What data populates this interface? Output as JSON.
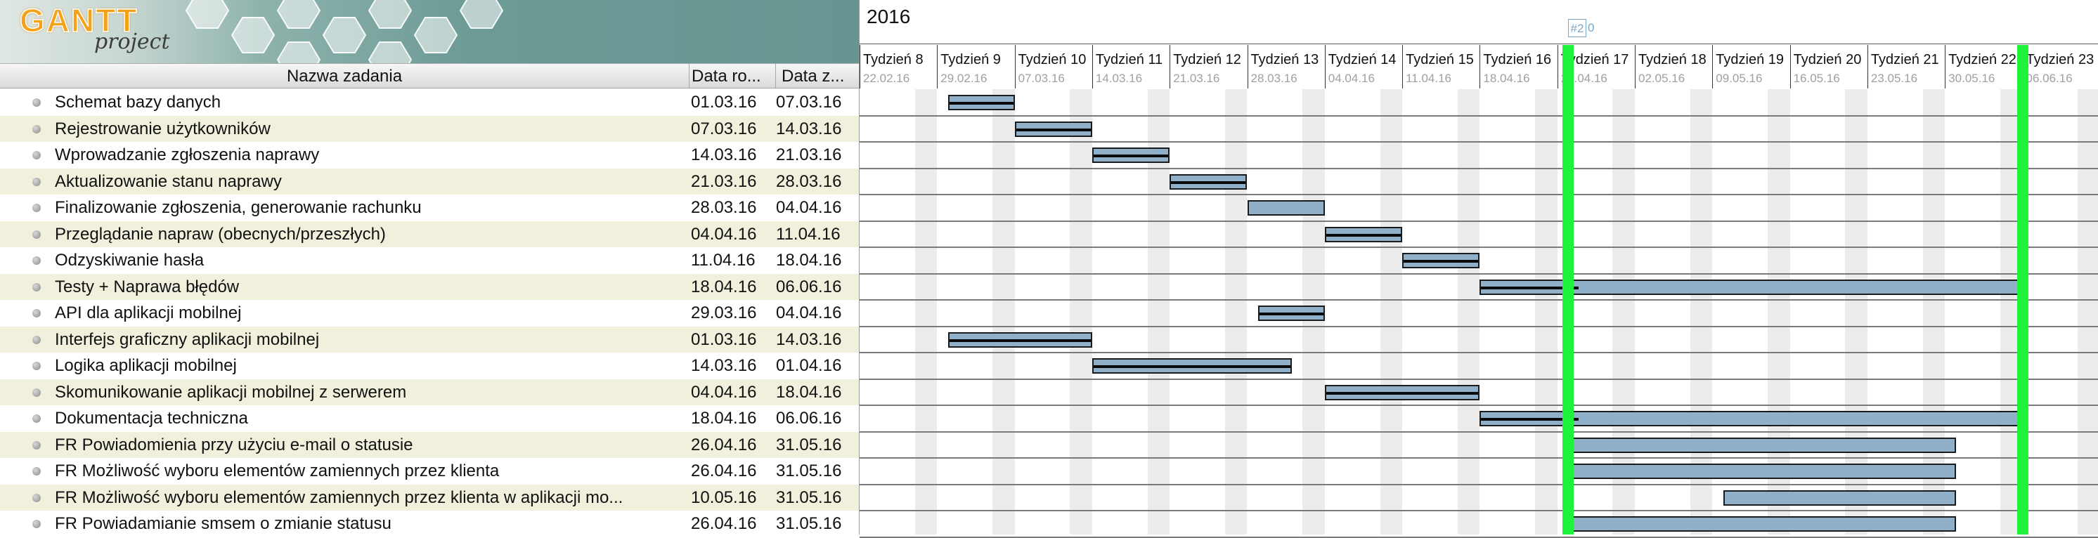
{
  "logo": {
    "word": "GANTT",
    "sub": "project"
  },
  "table": {
    "headers": {
      "name": "Nazwa zadania",
      "start": "Data ro...",
      "end": "Data z..."
    },
    "tasks": [
      {
        "name": "Schemat bazy danych",
        "start": "01.03.16",
        "end": "07.03.16",
        "progress": 1.0
      },
      {
        "name": "Rejestrowanie użytkowników",
        "start": "07.03.16",
        "end": "14.03.16",
        "progress": 1.0
      },
      {
        "name": "Wprowadzanie zgłoszenia naprawy",
        "start": "14.03.16",
        "end": "21.03.16",
        "progress": 1.0
      },
      {
        "name": "Aktualizowanie stanu naprawy",
        "start": "21.03.16",
        "end": "28.03.16",
        "progress": 1.0
      },
      {
        "name": "Finalizowanie zgłoszenia, generowanie rachunku",
        "start": "28.03.16",
        "end": "04.04.16",
        "progress": 0.0
      },
      {
        "name": "Przeglądanie napraw (obecnych/przeszłych)",
        "start": "04.04.16",
        "end": "11.04.16",
        "progress": 1.0
      },
      {
        "name": "Odzyskiwanie hasła",
        "start": "11.04.16",
        "end": "18.04.16",
        "progress": 1.0
      },
      {
        "name": "Testy + Naprawa błędów",
        "start": "18.04.16",
        "end": "06.06.16",
        "progress": 0.18
      },
      {
        "name": "API dla aplikacji mobilnej",
        "start": "29.03.16",
        "end": "04.04.16",
        "progress": 1.0
      },
      {
        "name": "Interfejs graficzny aplikacji mobilnej",
        "start": "01.03.16",
        "end": "14.03.16",
        "progress": 1.0
      },
      {
        "name": "Logika aplikacji mobilnej",
        "start": "14.03.16",
        "end": "01.04.16",
        "progress": 1.0
      },
      {
        "name": "Skomunikowanie aplikacji mobilnej z serwerem",
        "start": "04.04.16",
        "end": "18.04.16",
        "progress": 1.0
      },
      {
        "name": "Dokumentacja techniczna",
        "start": "18.04.16",
        "end": "06.06.16",
        "progress": 0.18
      },
      {
        "name": "FR Powiadomienia przy użyciu e-mail o statusie",
        "start": "26.04.16",
        "end": "31.05.16",
        "progress": 0.0
      },
      {
        "name": "FR Możliwość wyboru elementów zamiennych przez klienta",
        "start": "26.04.16",
        "end": "31.05.16",
        "progress": 0.0
      },
      {
        "name": "FR Możliwość wyboru elementów zamiennych przez klienta w aplikacji mo...",
        "start": "10.05.16",
        "end": "31.05.16",
        "progress": 0.0
      },
      {
        "name": "FR Powiadamianie smsem o zmianie statusu",
        "start": "26.04.16",
        "end": "31.05.16",
        "progress": 0.0
      }
    ]
  },
  "timeline": {
    "year": "2016",
    "marker": "#2",
    "marker_suffix": "0",
    "weeks": [
      {
        "label": "Tydzień 8",
        "date": "22.02.16"
      },
      {
        "label": "Tydzień 9",
        "date": "29.02.16"
      },
      {
        "label": "Tydzień 10",
        "date": "07.03.16"
      },
      {
        "label": "Tydzień 11",
        "date": "14.03.16"
      },
      {
        "label": "Tydzień 12",
        "date": "21.03.16"
      },
      {
        "label": "Tydzień 13",
        "date": "28.03.16"
      },
      {
        "label": "Tydzień 14",
        "date": "04.04.16"
      },
      {
        "label": "Tydzień 15",
        "date": "11.04.16"
      },
      {
        "label": "Tydzień 16",
        "date": "18.04.16"
      },
      {
        "label": "Tydzień 17",
        "date": "25.04.16"
      },
      {
        "label": "Tydzień 18",
        "date": "02.05.16"
      },
      {
        "label": "Tydzień 19",
        "date": "09.05.16"
      },
      {
        "label": "Tydzień 20",
        "date": "16.05.16"
      },
      {
        "label": "Tydzień 21",
        "date": "23.05.16"
      },
      {
        "label": "Tydzień 22",
        "date": "30.05.16"
      },
      {
        "label": "Tydzień 23",
        "date": "06.06.16"
      }
    ],
    "today_lines": [
      "26.04.16",
      "06.06.16"
    ]
  },
  "colors": {
    "bar": "#8fb0c8",
    "progress": "#0a0a0a",
    "today": "#1ff23a",
    "alt_row": "#f0f0dd"
  }
}
